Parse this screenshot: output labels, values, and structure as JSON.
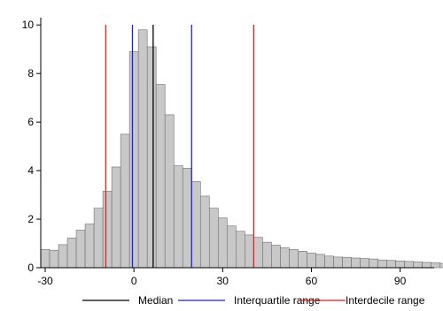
{
  "chart_data": {
    "type": "bar",
    "title": "",
    "xlabel": "",
    "ylabel": "",
    "xlim": [
      -31.5,
      101.5
    ],
    "ylim": [
      0,
      10.3
    ],
    "xticks": [
      -30,
      0,
      30,
      60,
      90
    ],
    "yticks": [
      0,
      2,
      4,
      6,
      8,
      10
    ],
    "grid": false,
    "bin_width": 3,
    "bin_start": -31.5,
    "bin_heights": [
      0.75,
      0.72,
      0.95,
      1.22,
      1.55,
      1.8,
      2.45,
      3.15,
      4.15,
      5.5,
      8.9,
      9.8,
      9.1,
      7.55,
      6.3,
      4.2,
      4.1,
      3.55,
      2.95,
      2.45,
      2.05,
      1.72,
      1.5,
      1.35,
      1.25,
      1.05,
      0.93,
      0.82,
      0.75,
      0.68,
      0.6,
      0.55,
      0.48,
      0.44,
      0.43,
      0.4,
      0.38,
      0.36,
      0.32,
      0.3,
      0.28,
      0.26,
      0.24,
      0.22,
      0.2,
      0.18
    ],
    "bar_fill": "#c8c8c8",
    "bar_stroke": "#6e6e6e",
    "reference_lines": [
      {
        "name": "Median",
        "color": "#000000",
        "x": [
          6.5
        ]
      },
      {
        "name": "Interquartile range",
        "color": "#1f1fe0",
        "x": [
          -0.5,
          19.5
        ]
      },
      {
        "name": "Interdecile range",
        "color": "#e01f1f",
        "x": [
          -9.5,
          40.5
        ]
      }
    ],
    "legend_position": "bottom"
  }
}
